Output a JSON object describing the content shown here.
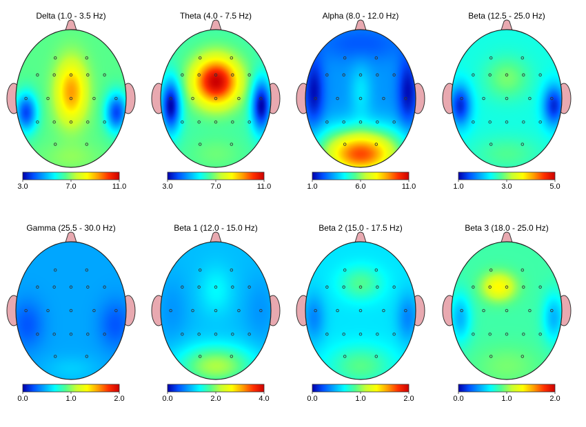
{
  "chart_data": {
    "type": "heatmap",
    "description_free": true,
    "colorscale": [
      "#0000aa",
      "#0050ff",
      "#00a8ff",
      "#00ffff",
      "#50ff90",
      "#c8ff30",
      "#ffff00",
      "#ffa000",
      "#ff3000",
      "#cc0000"
    ],
    "panels": [
      {
        "id": "delta",
        "title": "Delta (1.0 - 3.5 Hz)",
        "scale": {
          "min": 3.0,
          "max": 11.0,
          "ticks": [
            "3.0",
            "7.0",
            "11.0"
          ]
        },
        "base": 0.45,
        "blobs": [
          [
            0.0,
            -0.1,
            0.28,
            0.45,
            0.33
          ],
          [
            -0.82,
            0.2,
            0.2,
            0.28,
            -0.35
          ],
          [
            0.82,
            0.2,
            0.2,
            0.28,
            -0.35
          ],
          [
            0.0,
            0.85,
            0.5,
            0.2,
            0.05
          ]
        ]
      },
      {
        "id": "theta",
        "title": "Theta (4.0 - 7.5 Hz)",
        "scale": {
          "min": 3.0,
          "max": 11.0,
          "ticks": [
            "3.0",
            "7.0",
            "11.0"
          ]
        },
        "base": 0.42,
        "blobs": [
          [
            0.0,
            -0.25,
            0.42,
            0.35,
            0.58
          ],
          [
            -0.82,
            0.1,
            0.18,
            0.38,
            -0.42
          ],
          [
            0.82,
            0.1,
            0.18,
            0.38,
            -0.42
          ],
          [
            0.0,
            0.8,
            0.5,
            0.25,
            0.05
          ]
        ]
      },
      {
        "id": "alpha",
        "title": "Alpha (8.0 - 12.0 Hz)",
        "scale": {
          "min": 1.0,
          "max": 11.0,
          "ticks": [
            "1.0",
            "6.0",
            "11.0"
          ]
        },
        "base": 0.2,
        "blobs": [
          [
            0.0,
            0.85,
            0.7,
            0.3,
            0.55
          ],
          [
            0.0,
            0.6,
            0.9,
            0.3,
            0.2
          ],
          [
            0.0,
            -0.8,
            0.8,
            0.25,
            -0.08
          ],
          [
            -0.85,
            -0.1,
            0.18,
            0.5,
            -0.18
          ],
          [
            0.85,
            -0.1,
            0.18,
            0.5,
            -0.18
          ],
          [
            0.0,
            -0.1,
            0.2,
            0.4,
            0.1
          ]
        ]
      },
      {
        "id": "beta-wide",
        "title": "Beta (12.5 - 25.0 Hz)",
        "scale": {
          "min": 1.0,
          "max": 5.0,
          "ticks": [
            "1.0",
            "3.0",
            "5.0"
          ]
        },
        "base": 0.36,
        "blobs": [
          [
            0.0,
            -0.3,
            0.4,
            0.3,
            0.12
          ],
          [
            -0.85,
            0.1,
            0.2,
            0.3,
            -0.3
          ],
          [
            0.85,
            0.1,
            0.2,
            0.3,
            -0.3
          ],
          [
            0.0,
            0.8,
            0.6,
            0.25,
            0.08
          ]
        ]
      },
      {
        "id": "gamma",
        "title": "Gamma (25.5 - 30.0 Hz)",
        "scale": {
          "min": 0.0,
          "max": 2.0,
          "ticks": [
            "0.0",
            "1.0",
            "2.0"
          ]
        },
        "base": 0.22,
        "blobs": [
          [
            -0.8,
            0.2,
            0.3,
            0.35,
            -0.1
          ],
          [
            0.8,
            0.2,
            0.3,
            0.35,
            -0.1
          ],
          [
            0.0,
            0.85,
            0.5,
            0.2,
            0.05
          ]
        ]
      },
      {
        "id": "beta1",
        "title": "Beta 1 (12.0 - 15.0 Hz)",
        "scale": {
          "min": 0.0,
          "max": 4.0,
          "ticks": [
            "0.0",
            "2.0",
            "4.0"
          ]
        },
        "base": 0.25,
        "blobs": [
          [
            0.0,
            0.8,
            0.7,
            0.3,
            0.28
          ],
          [
            0.0,
            -0.3,
            0.3,
            0.35,
            0.08
          ],
          [
            -0.8,
            0.0,
            0.3,
            0.5,
            -0.05
          ],
          [
            0.8,
            0.0,
            0.3,
            0.5,
            -0.05
          ]
        ]
      },
      {
        "id": "beta2",
        "title": "Beta 2 (15.0 - 17.5 Hz)",
        "scale": {
          "min": 0.0,
          "max": 2.0,
          "ticks": [
            "0.0",
            "1.0",
            "2.0"
          ]
        },
        "base": 0.3,
        "blobs": [
          [
            0.0,
            -0.4,
            0.4,
            0.25,
            0.14
          ],
          [
            0.0,
            0.8,
            0.6,
            0.3,
            0.15
          ],
          [
            -0.85,
            0.1,
            0.2,
            0.35,
            -0.12
          ],
          [
            0.85,
            0.1,
            0.2,
            0.35,
            -0.12
          ]
        ]
      },
      {
        "id": "beta3",
        "title": "Beta 3 (18.0 - 25.0 Hz)",
        "scale": {
          "min": 0.0,
          "max": 2.0,
          "ticks": [
            "0.0",
            "1.0",
            "2.0"
          ]
        },
        "base": 0.42,
        "blobs": [
          [
            -0.15,
            -0.35,
            0.3,
            0.2,
            0.25
          ],
          [
            -0.85,
            0.1,
            0.2,
            0.35,
            -0.18
          ],
          [
            0.85,
            0.1,
            0.2,
            0.35,
            -0.18
          ],
          [
            0.0,
            0.8,
            0.6,
            0.3,
            0.06
          ]
        ]
      }
    ],
    "electrodes": [
      [
        -0.3,
        -0.62
      ],
      [
        0.3,
        -0.62
      ],
      [
        -0.64,
        -0.36
      ],
      [
        -0.32,
        -0.36
      ],
      [
        0.0,
        -0.36
      ],
      [
        0.32,
        -0.36
      ],
      [
        0.64,
        -0.36
      ],
      [
        -0.86,
        0.0
      ],
      [
        -0.44,
        0.0
      ],
      [
        0.0,
        0.0
      ],
      [
        0.44,
        0.0
      ],
      [
        0.86,
        0.0
      ],
      [
        -0.64,
        0.36
      ],
      [
        -0.32,
        0.36
      ],
      [
        0.0,
        0.36
      ],
      [
        0.32,
        0.36
      ],
      [
        0.64,
        0.36
      ],
      [
        -0.3,
        0.7
      ],
      [
        0.3,
        0.7
      ]
    ]
  }
}
